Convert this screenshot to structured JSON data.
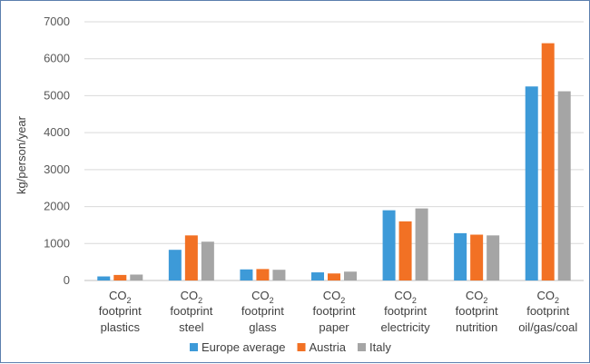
{
  "chart_data": {
    "type": "bar",
    "title": "",
    "ylabel": "kg/person/year",
    "xlabel": "",
    "ylim": [
      0,
      7000
    ],
    "yticks": [
      0,
      1000,
      2000,
      3000,
      4000,
      5000,
      6000,
      7000
    ],
    "grid": "horizontal",
    "legend_position": "bottom",
    "categories": [
      {
        "line1": "CO",
        "sub": "2",
        "line2": "footprint",
        "line3": "plastics"
      },
      {
        "line1": "CO",
        "sub": "2",
        "line2": "footprint",
        "line3": "steel"
      },
      {
        "line1": "CO",
        "sub": "2",
        "line2": "footprint",
        "line3": "glass"
      },
      {
        "line1": "CO",
        "sub": "2",
        "line2": "footprint",
        "line3": "paper"
      },
      {
        "line1": "CO",
        "sub": "2",
        "line2": "footprint",
        "line3": "electricity"
      },
      {
        "line1": "CO",
        "sub": "2",
        "line2": "footprint",
        "line3": "nutrition"
      },
      {
        "line1": "CO",
        "sub": "2",
        "line2": "footprint",
        "line3": "oil/gas/coal"
      }
    ],
    "series": [
      {
        "name": "Europe average",
        "color": "#3d9ad8",
        "values": [
          110,
          830,
          300,
          220,
          1900,
          1280,
          5250
        ]
      },
      {
        "name": "Austria",
        "color": "#f27124",
        "values": [
          150,
          1220,
          310,
          190,
          1600,
          1240,
          6420
        ]
      },
      {
        "name": "Italy",
        "color": "#a5a5a5",
        "values": [
          160,
          1050,
          290,
          240,
          1950,
          1220,
          5120
        ]
      }
    ]
  }
}
